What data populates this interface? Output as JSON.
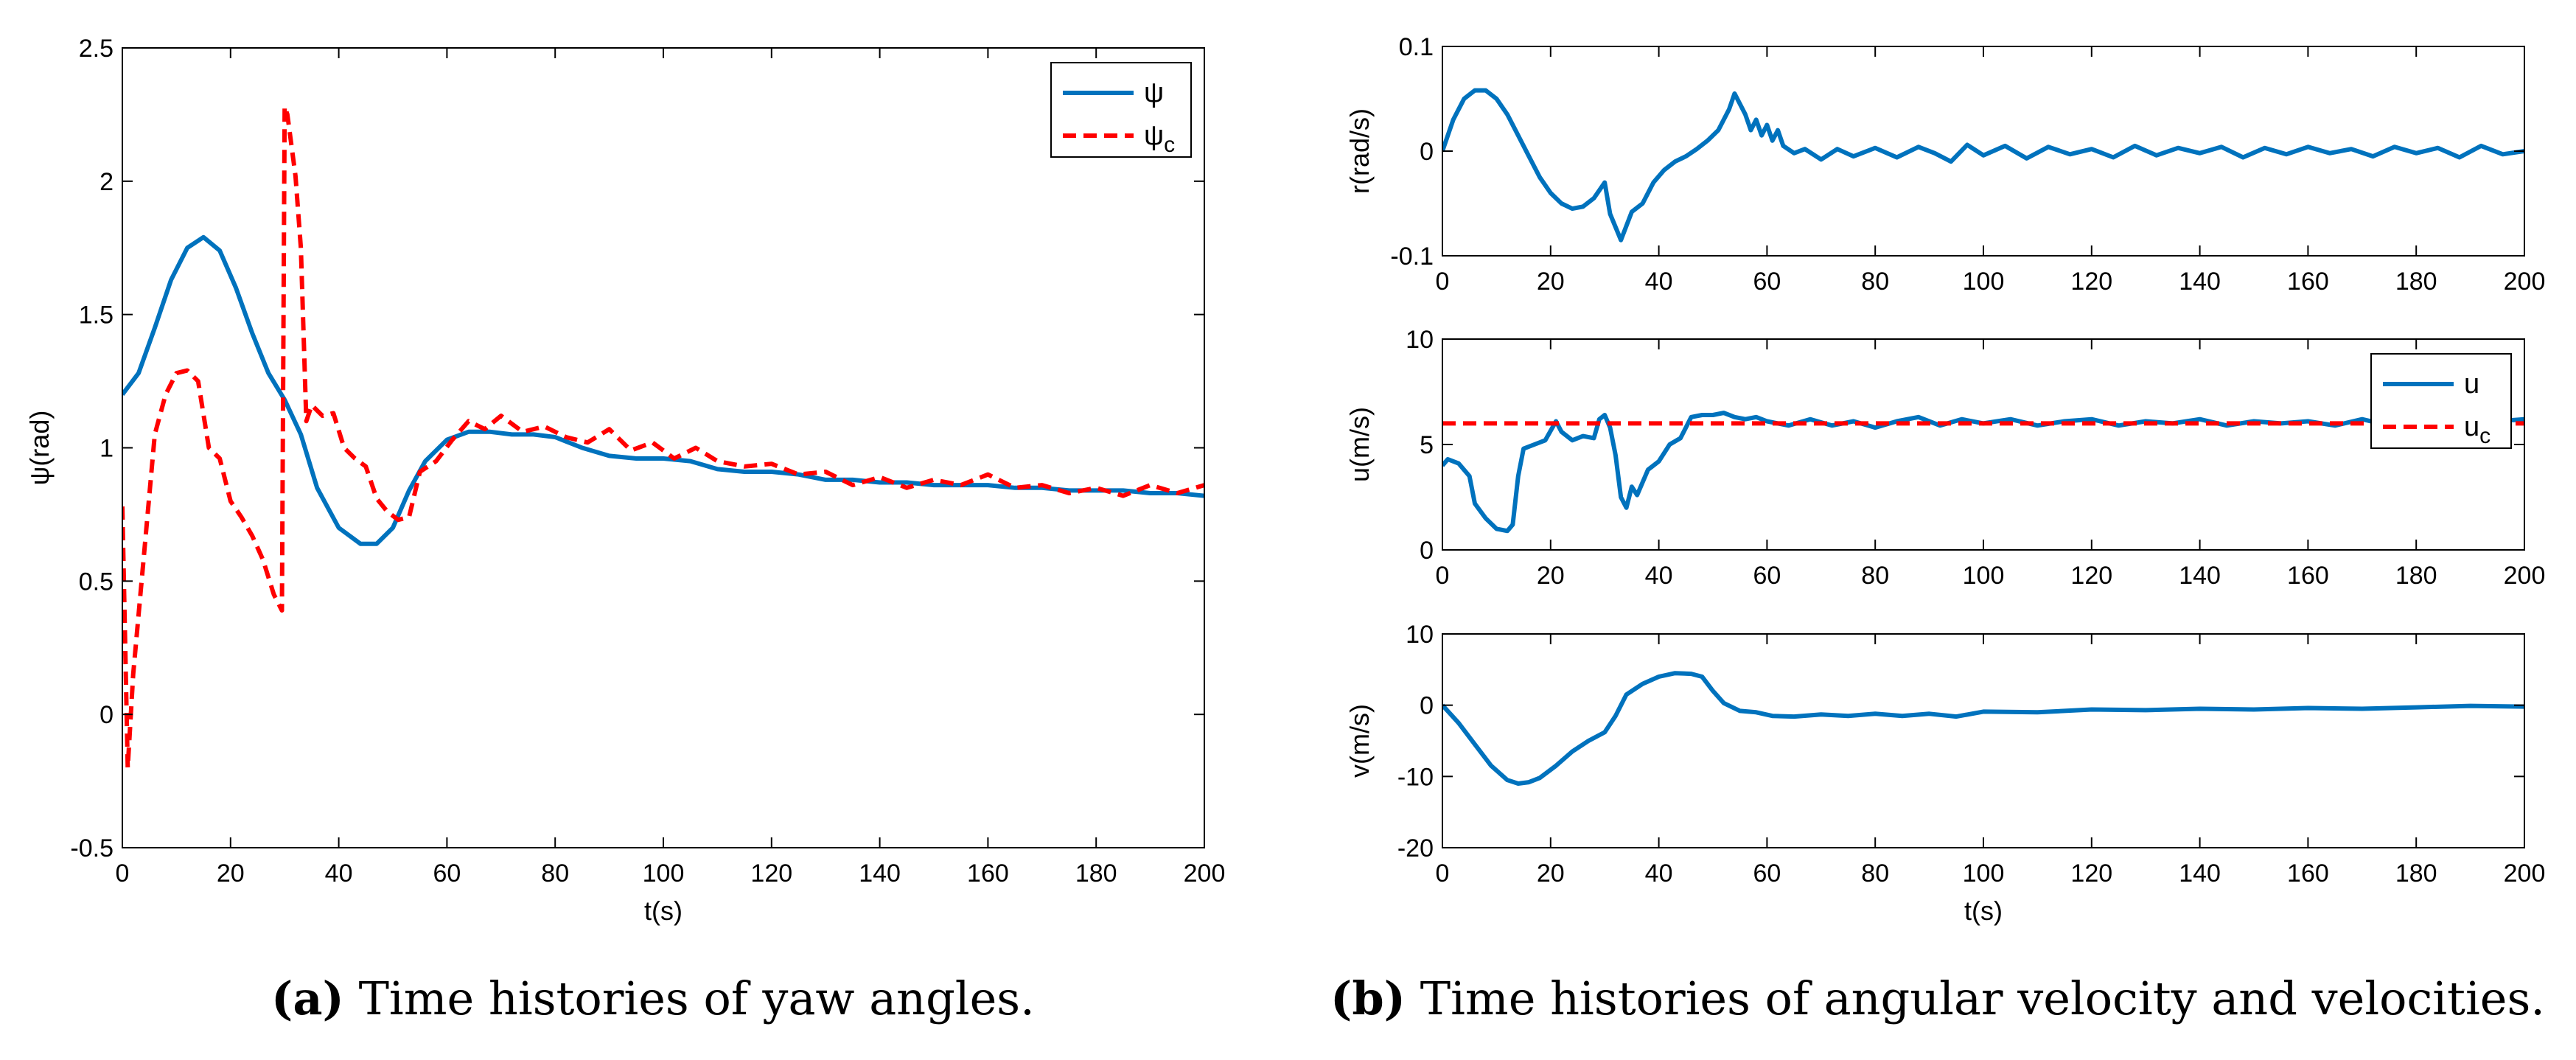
{
  "captions": {
    "a_label": "(a)",
    "a_text": "Time histories of yaw angles.",
    "b_label": "(b)",
    "b_text": "Time histories of angular velocity and velocities."
  },
  "colors": {
    "blue": "#0072BD",
    "red": "#FF0000",
    "axis": "#000000"
  },
  "chart_data": [
    {
      "id": "a",
      "type": "line",
      "xlabel": "t(s)",
      "ylabel": "ψ(rad)",
      "xlim": [
        0,
        200
      ],
      "ylim": [
        -0.5,
        2.5
      ],
      "xticks": [
        0,
        20,
        40,
        60,
        80,
        100,
        120,
        140,
        160,
        180,
        200
      ],
      "yticks": [
        -0.5,
        0,
        0.5,
        1,
        1.5,
        2,
        2.5
      ],
      "ytick_labels": [
        "-0.5",
        "0",
        "0.5",
        "1",
        "1.5",
        "2",
        "2.5"
      ],
      "legend": {
        "placement": "top-right",
        "entries": [
          {
            "label": "ψ",
            "sub": "",
            "color": "#0072BD",
            "style": "solid"
          },
          {
            "label": "ψ",
            "sub": "c",
            "color": "#FF0000",
            "style": "dashed"
          }
        ]
      },
      "series": [
        {
          "name": "ψ",
          "color": "#0072BD",
          "style": "solid",
          "x": [
            0,
            3,
            6,
            9,
            12,
            15,
            18,
            21,
            24,
            27,
            30,
            33,
            36,
            40,
            44,
            47,
            50,
            53,
            56,
            60,
            64,
            68,
            72,
            76,
            80,
            85,
            90,
            95,
            100,
            105,
            110,
            115,
            120,
            125,
            130,
            135,
            140,
            145,
            150,
            155,
            160,
            165,
            170,
            175,
            180,
            185,
            190,
            195,
            200
          ],
          "y": [
            1.2,
            1.28,
            1.45,
            1.63,
            1.75,
            1.79,
            1.74,
            1.6,
            1.43,
            1.28,
            1.18,
            1.05,
            0.85,
            0.7,
            0.64,
            0.64,
            0.7,
            0.84,
            0.95,
            1.03,
            1.06,
            1.06,
            1.05,
            1.05,
            1.04,
            1.0,
            0.97,
            0.96,
            0.96,
            0.95,
            0.92,
            0.91,
            0.91,
            0.9,
            0.88,
            0.88,
            0.87,
            0.87,
            0.86,
            0.86,
            0.86,
            0.85,
            0.85,
            0.84,
            0.84,
            0.84,
            0.83,
            0.83,
            0.82
          ]
        },
        {
          "name": "ψ_c",
          "color": "#FF0000",
          "style": "dashed",
          "x": [
            0,
            1,
            2,
            4,
            6,
            8,
            10,
            12,
            14,
            16,
            18,
            20,
            22,
            24,
            26,
            28,
            29.5,
            30,
            30.5,
            32,
            33,
            34,
            35,
            37,
            39,
            41,
            43,
            45,
            47,
            49,
            51,
            53,
            55,
            58,
            61,
            64,
            67,
            70,
            74,
            78,
            82,
            86,
            90,
            94,
            98,
            102,
            106,
            110,
            115,
            120,
            125,
            130,
            135,
            140,
            145,
            150,
            155,
            160,
            165,
            170,
            175,
            180,
            185,
            190,
            195,
            200
          ],
          "y": [
            0.78,
            -0.2,
            0.15,
            0.6,
            1.05,
            1.2,
            1.28,
            1.29,
            1.25,
            1.0,
            0.96,
            0.8,
            0.74,
            0.67,
            0.58,
            0.45,
            0.39,
            2.28,
            2.25,
            2.02,
            1.75,
            1.1,
            1.16,
            1.12,
            1.13,
            1.0,
            0.96,
            0.93,
            0.81,
            0.76,
            0.73,
            0.74,
            0.91,
            0.95,
            1.03,
            1.1,
            1.07,
            1.12,
            1.06,
            1.08,
            1.04,
            1.02,
            1.07,
            0.99,
            1.02,
            0.96,
            1.0,
            0.95,
            0.93,
            0.94,
            0.9,
            0.91,
            0.86,
            0.89,
            0.85,
            0.88,
            0.86,
            0.9,
            0.85,
            0.86,
            0.83,
            0.85,
            0.82,
            0.86,
            0.83,
            0.86
          ]
        }
      ]
    },
    {
      "id": "b1",
      "type": "line",
      "xlabel": "",
      "ylabel": "r(rad/s)",
      "xlim": [
        0,
        200
      ],
      "ylim": [
        -0.1,
        0.1
      ],
      "xticks": [
        0,
        20,
        40,
        60,
        80,
        100,
        120,
        140,
        160,
        180,
        200
      ],
      "yticks": [
        -0.1,
        0,
        0.1
      ],
      "ytick_labels": [
        "-0.1",
        "0",
        "0.1"
      ],
      "series": [
        {
          "name": "",
          "color": "#0072BD",
          "style": "solid",
          "x": [
            0,
            2,
            4,
            6,
            8,
            10,
            12,
            14,
            16,
            18,
            20,
            22,
            24,
            26,
            28,
            30,
            31,
            33,
            35,
            37,
            39,
            41,
            43,
            45,
            47,
            49,
            51,
            53,
            54,
            56,
            57,
            58,
            59,
            60,
            61,
            62,
            63,
            65,
            67,
            70,
            73,
            76,
            80,
            84,
            88,
            91,
            94,
            97,
            100,
            104,
            108,
            112,
            116,
            120,
            124,
            128,
            132,
            136,
            140,
            144,
            148,
            152,
            156,
            160,
            164,
            168,
            172,
            176,
            180,
            184,
            188,
            192,
            196,
            200
          ],
          "y": [
            0,
            0.03,
            0.05,
            0.058,
            0.058,
            0.05,
            0.035,
            0.015,
            -0.005,
            -0.025,
            -0.04,
            -0.05,
            -0.055,
            -0.053,
            -0.045,
            -0.03,
            -0.06,
            -0.085,
            -0.058,
            -0.05,
            -0.03,
            -0.018,
            -0.01,
            -0.005,
            0.002,
            0.01,
            0.02,
            0.04,
            0.055,
            0.035,
            0.02,
            0.03,
            0.015,
            0.025,
            0.01,
            0.02,
            0.005,
            -0.002,
            0.002,
            -0.008,
            0.002,
            -0.005,
            0.003,
            -0.006,
            0.004,
            -0.002,
            -0.01,
            0.006,
            -0.004,
            0.005,
            -0.007,
            0.004,
            -0.003,
            0.002,
            -0.006,
            0.005,
            -0.004,
            0.003,
            -0.002,
            0.004,
            -0.006,
            0.003,
            -0.003,
            0.004,
            -0.002,
            0.002,
            -0.005,
            0.004,
            -0.002,
            0.003,
            -0.006,
            0.005,
            -0.003,
            0
          ]
        }
      ]
    },
    {
      "id": "b2",
      "type": "line",
      "xlabel": "",
      "ylabel": "u(m/s)",
      "xlim": [
        0,
        200
      ],
      "ylim": [
        0,
        10
      ],
      "xticks": [
        0,
        20,
        40,
        60,
        80,
        100,
        120,
        140,
        160,
        180,
        200
      ],
      "yticks": [
        0,
        5,
        10
      ],
      "ytick_labels": [
        "0",
        "5",
        "10"
      ],
      "legend": {
        "placement": "top-right",
        "entries": [
          {
            "label": "u",
            "sub": "",
            "color": "#0072BD",
            "style": "solid"
          },
          {
            "label": "u",
            "sub": "c",
            "color": "#FF0000",
            "style": "dashed"
          }
        ]
      },
      "series": [
        {
          "name": "u",
          "color": "#0072BD",
          "style": "solid",
          "x": [
            0,
            1,
            3,
            5,
            6,
            8,
            10,
            12,
            13,
            14,
            15,
            17,
            19,
            21,
            22,
            24,
            26,
            28,
            29,
            30,
            31,
            32,
            33,
            34,
            35,
            36,
            38,
            40,
            42,
            44,
            46,
            48,
            50,
            52,
            54,
            56,
            58,
            60,
            64,
            68,
            72,
            76,
            80,
            84,
            88,
            92,
            96,
            100,
            105,
            110,
            115,
            120,
            125,
            130,
            135,
            140,
            145,
            150,
            155,
            160,
            165,
            170,
            175,
            180,
            185,
            190,
            195,
            200
          ],
          "y": [
            4.0,
            4.3,
            4.1,
            3.5,
            2.2,
            1.5,
            1.0,
            0.9,
            1.2,
            3.5,
            4.8,
            5.0,
            5.2,
            6.1,
            5.6,
            5.2,
            5.4,
            5.3,
            6.2,
            6.4,
            5.8,
            4.5,
            2.5,
            2.0,
            3.0,
            2.6,
            3.8,
            4.2,
            5.0,
            5.3,
            6.3,
            6.4,
            6.4,
            6.5,
            6.3,
            6.2,
            6.3,
            6.1,
            5.9,
            6.2,
            5.9,
            6.1,
            5.8,
            6.1,
            6.3,
            5.9,
            6.2,
            6.0,
            6.2,
            5.9,
            6.1,
            6.2,
            5.9,
            6.1,
            6.0,
            6.2,
            5.9,
            6.1,
            6.0,
            6.1,
            5.9,
            6.2,
            5.9,
            6.1,
            6.2,
            6.0,
            6.1,
            6.2
          ]
        },
        {
          "name": "u_c",
          "color": "#FF0000",
          "style": "dashed",
          "x": [
            0,
            200
          ],
          "y": [
            6,
            6
          ]
        }
      ]
    },
    {
      "id": "b3",
      "type": "line",
      "xlabel": "t(s)",
      "ylabel": "v(m/s)",
      "xlim": [
        0,
        200
      ],
      "ylim": [
        -20,
        10
      ],
      "xticks": [
        0,
        20,
        40,
        60,
        80,
        100,
        120,
        140,
        160,
        180,
        200
      ],
      "yticks": [
        -20,
        -10,
        0,
        10
      ],
      "ytick_labels": [
        "-20",
        "-10",
        "0",
        "10"
      ],
      "series": [
        {
          "name": "",
          "color": "#0072BD",
          "style": "solid",
          "x": [
            0,
            3,
            6,
            9,
            12,
            14,
            16,
            18,
            21,
            24,
            27,
            30,
            32,
            34,
            37,
            40,
            43,
            46,
            48,
            50,
            52,
            55,
            58,
            61,
            65,
            70,
            75,
            80,
            85,
            90,
            95,
            100,
            110,
            120,
            130,
            140,
            150,
            160,
            170,
            180,
            190,
            200
          ],
          "y": [
            0,
            -2.5,
            -5.5,
            -8.5,
            -10.5,
            -11,
            -10.8,
            -10.2,
            -8.5,
            -6.5,
            -5,
            -3.8,
            -1.5,
            1.5,
            3.0,
            4.0,
            4.5,
            4.4,
            4.0,
            2.0,
            0.3,
            -0.8,
            -1.0,
            -1.5,
            -1.6,
            -1.3,
            -1.5,
            -1.2,
            -1.5,
            -1.2,
            -1.6,
            -0.9,
            -1.0,
            -0.6,
            -0.7,
            -0.5,
            -0.6,
            -0.4,
            -0.5,
            -0.3,
            -0.1,
            -0.2
          ]
        }
      ]
    }
  ]
}
